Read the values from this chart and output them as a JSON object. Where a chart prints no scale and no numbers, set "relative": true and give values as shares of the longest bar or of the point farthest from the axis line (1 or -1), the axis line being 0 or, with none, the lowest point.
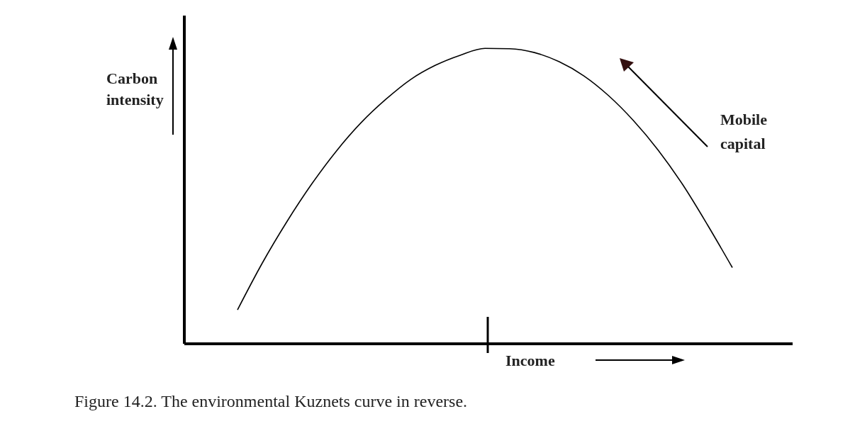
{
  "chart_data": {
    "type": "line",
    "relative": true,
    "ylabel": "Carbon intensity",
    "xlabel": "Income",
    "categories": [
      null,
      null,
      null,
      null,
      null,
      null,
      null,
      null,
      null,
      null,
      null,
      null,
      null,
      null,
      null,
      null,
      null,
      null,
      null,
      null,
      null
    ],
    "series": [
      {
        "color": "#000000",
        "values": [
          0.115,
          0.273,
          0.414,
          0.541,
          0.653,
          0.749,
          0.828,
          0.895,
          0.943,
          0.977,
          1,
          0.999,
          0.986,
          0.955,
          0.907,
          0.84,
          0.756,
          0.656,
          0.538,
          0.402,
          0.258
        ]
      }
    ],
    "annotations": [
      "Mobile capital",
      "Figure 14.2. The environmental Kuznets curve in reverse."
    ]
  }
}
